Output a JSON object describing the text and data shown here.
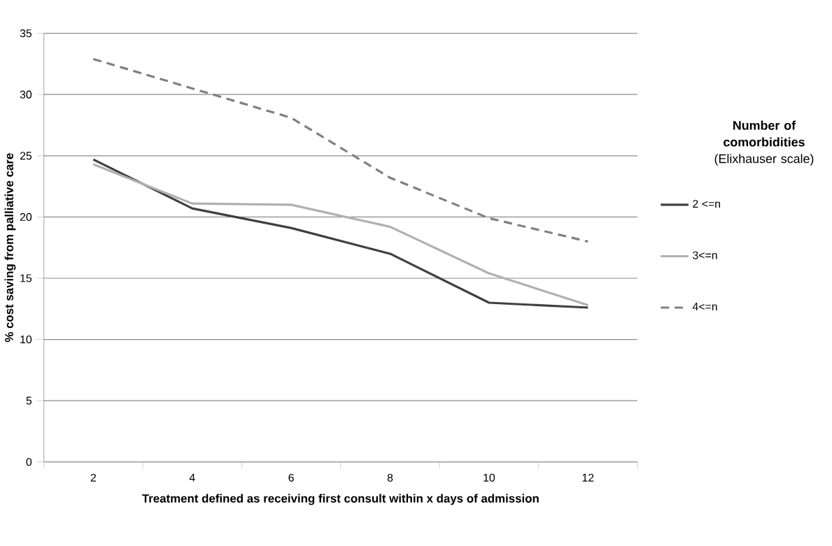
{
  "chart_data": {
    "type": "line",
    "xlabel": "Treatment defined as receiving first consult within x days of admission",
    "ylabel": "% cost saving from palliative care",
    "legend_title": "**Number of comorbidities** (Elixhauser scale)",
    "categories": [
      "2",
      "4",
      "6",
      "8",
      "10",
      "12"
    ],
    "series": [
      {
        "name": "2 <=n",
        "color": "#404040",
        "line_style": "solid",
        "values": [
          24.7,
          20.7,
          19.1,
          17.0,
          13.0,
          12.6
        ]
      },
      {
        "name": "3<=n",
        "color": "#b0b0b0",
        "line_style": "solid",
        "values": [
          24.3,
          21.1,
          21.0,
          19.2,
          15.4,
          12.8
        ]
      },
      {
        "name": "4<=n",
        "color": "#7f7f7f",
        "line_style": "dashed",
        "values": [
          32.9,
          30.5,
          28.1,
          23.2,
          19.9,
          18.0
        ]
      }
    ],
    "ylim": [
      0,
      35
    ],
    "yticks": [
      0,
      5,
      10,
      15,
      20,
      25,
      30,
      35
    ],
    "grid": "y",
    "legend": "right",
    "marker": "none"
  }
}
